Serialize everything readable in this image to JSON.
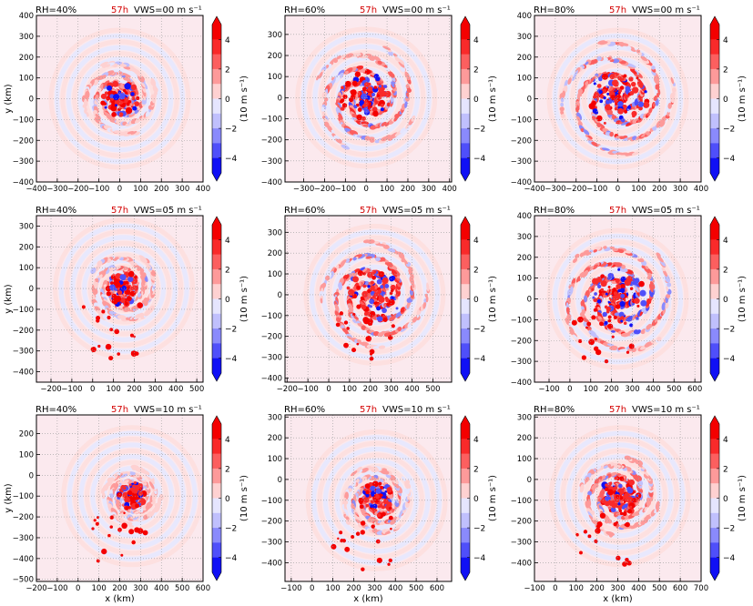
{
  "figure": {
    "time_label": "57h",
    "colorbar_label": "(10 m s⁻¹)",
    "colorbar_ticks": [
      "4",
      "2",
      "0",
      "−2",
      "−4"
    ],
    "xlabel": "x (km)",
    "ylabel": "y (km)",
    "colors": {
      "pos": [
        "#ffffff",
        "#fed1d1",
        "#fd9a9a",
        "#fc5f5f",
        "#f92a2a",
        "#f40000"
      ],
      "neg": [
        "#ffffff",
        "#e5e5fe",
        "#c0c0fd",
        "#8a8afc",
        "#4f4ffa",
        "#1010f5"
      ],
      "time_color": "#d40000"
    }
  },
  "chart_data": [
    {
      "type": "heatmap",
      "rh": "RH=40%",
      "vws": "VWS=00 m s⁻¹",
      "center": [
        0,
        0
      ],
      "xlim": [
        -400,
        400
      ],
      "ylim": [
        -400,
        400
      ],
      "xticks": [
        -400,
        -300,
        -200,
        -100,
        0,
        100,
        200,
        300,
        400
      ],
      "yticks": [
        -400,
        -300,
        -200,
        -100,
        0,
        100,
        200,
        300,
        400
      ],
      "xlabel": "",
      "ylabel": "y (km)"
    },
    {
      "type": "heatmap",
      "rh": "RH=60%",
      "vws": "VWS=00 m s⁻¹",
      "center": [
        0,
        0
      ],
      "xlim": [
        -390,
        410
      ],
      "ylim": [
        -400,
        390
      ],
      "xticks": [
        -300,
        -200,
        -100,
        0,
        100,
        200,
        300,
        400
      ],
      "yticks": [
        -400,
        -300,
        -200,
        -100,
        0,
        100,
        200,
        300
      ],
      "xlabel": "",
      "ylabel": ""
    },
    {
      "type": "heatmap",
      "rh": "RH=80%",
      "vws": "VWS=00 m s⁻¹",
      "center": [
        0,
        0
      ],
      "xlim": [
        -400,
        400
      ],
      "ylim": [
        -400,
        400
      ],
      "xticks": [
        -400,
        -300,
        -200,
        -100,
        0,
        100,
        200,
        300,
        400
      ],
      "yticks": [
        -400,
        -300,
        -200,
        -100,
        0,
        100,
        200,
        300,
        400
      ],
      "xlabel": "",
      "ylabel": ""
    },
    {
      "type": "heatmap",
      "rh": "RH=40%",
      "vws": "VWS=05 m s⁻¹",
      "center": [
        150,
        0
      ],
      "xlim": [
        -270,
        530
      ],
      "ylim": [
        -450,
        350
      ],
      "xticks": [
        -200,
        -100,
        0,
        100,
        200,
        300,
        400,
        500
      ],
      "yticks": [
        -400,
        -300,
        -200,
        -100,
        0,
        100,
        200,
        300
      ],
      "xlabel": "",
      "ylabel": "y (km)"
    },
    {
      "type": "heatmap",
      "rh": "RH=60%",
      "vws": "VWS=05 m s⁻¹",
      "center": [
        220,
        0
      ],
      "xlim": [
        -210,
        590
      ],
      "ylim": [
        -420,
        380
      ],
      "xticks": [
        -200,
        -100,
        0,
        100,
        200,
        300,
        400,
        500
      ],
      "yticks": [
        -400,
        -300,
        -200,
        -100,
        0,
        100,
        200,
        300
      ],
      "xlabel": "",
      "ylabel": ""
    },
    {
      "type": "heatmap",
      "rh": "RH=80%",
      "vws": "VWS=05 m s⁻¹",
      "center": [
        230,
        0
      ],
      "xlim": [
        -170,
        630
      ],
      "ylim": [
        -400,
        400
      ],
      "xticks": [
        -100,
        0,
        100,
        200,
        300,
        400,
        500,
        600
      ],
      "yticks": [
        -400,
        -300,
        -200,
        -100,
        0,
        100,
        200,
        300,
        400
      ],
      "xlabel": "",
      "ylabel": ""
    },
    {
      "type": "heatmap",
      "rh": "RH=40%",
      "vws": "VWS=10 m s⁻¹",
      "center": [
        260,
        -100
      ],
      "xlim": [
        -200,
        600
      ],
      "ylim": [
        -510,
        290
      ],
      "xticks": [
        -200,
        -100,
        0,
        100,
        200,
        300,
        400,
        500,
        600
      ],
      "yticks": [
        -500,
        -400,
        -300,
        -200,
        -100,
        0,
        100,
        200
      ],
      "xlabel": "x (km)",
      "ylabel": "y (km)"
    },
    {
      "type": "heatmap",
      "rh": "RH=60%",
      "vws": "VWS=10 m s⁻¹",
      "center": [
        310,
        -100
      ],
      "xlim": [
        -130,
        670
      ],
      "ylim": [
        -490,
        310
      ],
      "xticks": [
        -100,
        0,
        100,
        200,
        300,
        400,
        500,
        600
      ],
      "yticks": [
        -400,
        -300,
        -200,
        -100,
        0,
        100,
        200,
        300
      ],
      "xlabel": "x (km)",
      "ylabel": ""
    },
    {
      "type": "heatmap",
      "rh": "RH=80%",
      "vws": "VWS=10 m s⁻¹",
      "center": [
        310,
        -80
      ],
      "xlim": [
        -100,
        700
      ],
      "ylim": [
        -490,
        310
      ],
      "xticks": [
        -100,
        0,
        100,
        200,
        300,
        400,
        500,
        600,
        700
      ],
      "yticks": [
        -400,
        -300,
        -200,
        -100,
        0,
        100,
        200,
        300
      ],
      "xlabel": "x (km)",
      "ylabel": ""
    }
  ]
}
